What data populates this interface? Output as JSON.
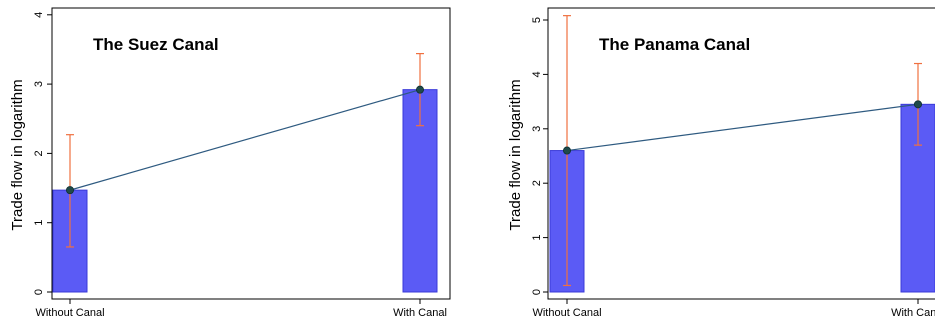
{
  "chart_data": [
    {
      "type": "bar",
      "title": "The Suez Canal",
      "xlabel": "",
      "ylabel": "Trade flow in logarithm",
      "categories": [
        "Without Canal",
        "With Canal"
      ],
      "values": [
        1.47,
        2.92
      ],
      "error_low": [
        0.65,
        2.4
      ],
      "error_high": [
        2.27,
        3.44
      ],
      "line": true,
      "ylim": [
        0,
        4
      ],
      "yticks": [
        0,
        1,
        2,
        3,
        4
      ],
      "colors": {
        "bar": "#5b5bf5",
        "bar_edge": "#3a3ad8",
        "line": "#2e5a80",
        "marker": "#1f4a4a",
        "error": "#f07040"
      }
    },
    {
      "type": "bar",
      "title": "The Panama Canal",
      "xlabel": "",
      "ylabel": "Trade flow in logarithm",
      "categories": [
        "Without Canal",
        "With Canal"
      ],
      "values": [
        2.6,
        3.45
      ],
      "error_low": [
        0.12,
        2.7
      ],
      "error_high": [
        5.08,
        4.2
      ],
      "line": true,
      "ylim": [
        0,
        5
      ],
      "yticks": [
        0,
        1,
        2,
        3,
        4,
        5
      ],
      "colors": {
        "bar": "#5b5bf5",
        "bar_edge": "#3a3ad8",
        "line": "#2e5a80",
        "marker": "#1f4a4a",
        "error": "#f07040"
      }
    }
  ]
}
